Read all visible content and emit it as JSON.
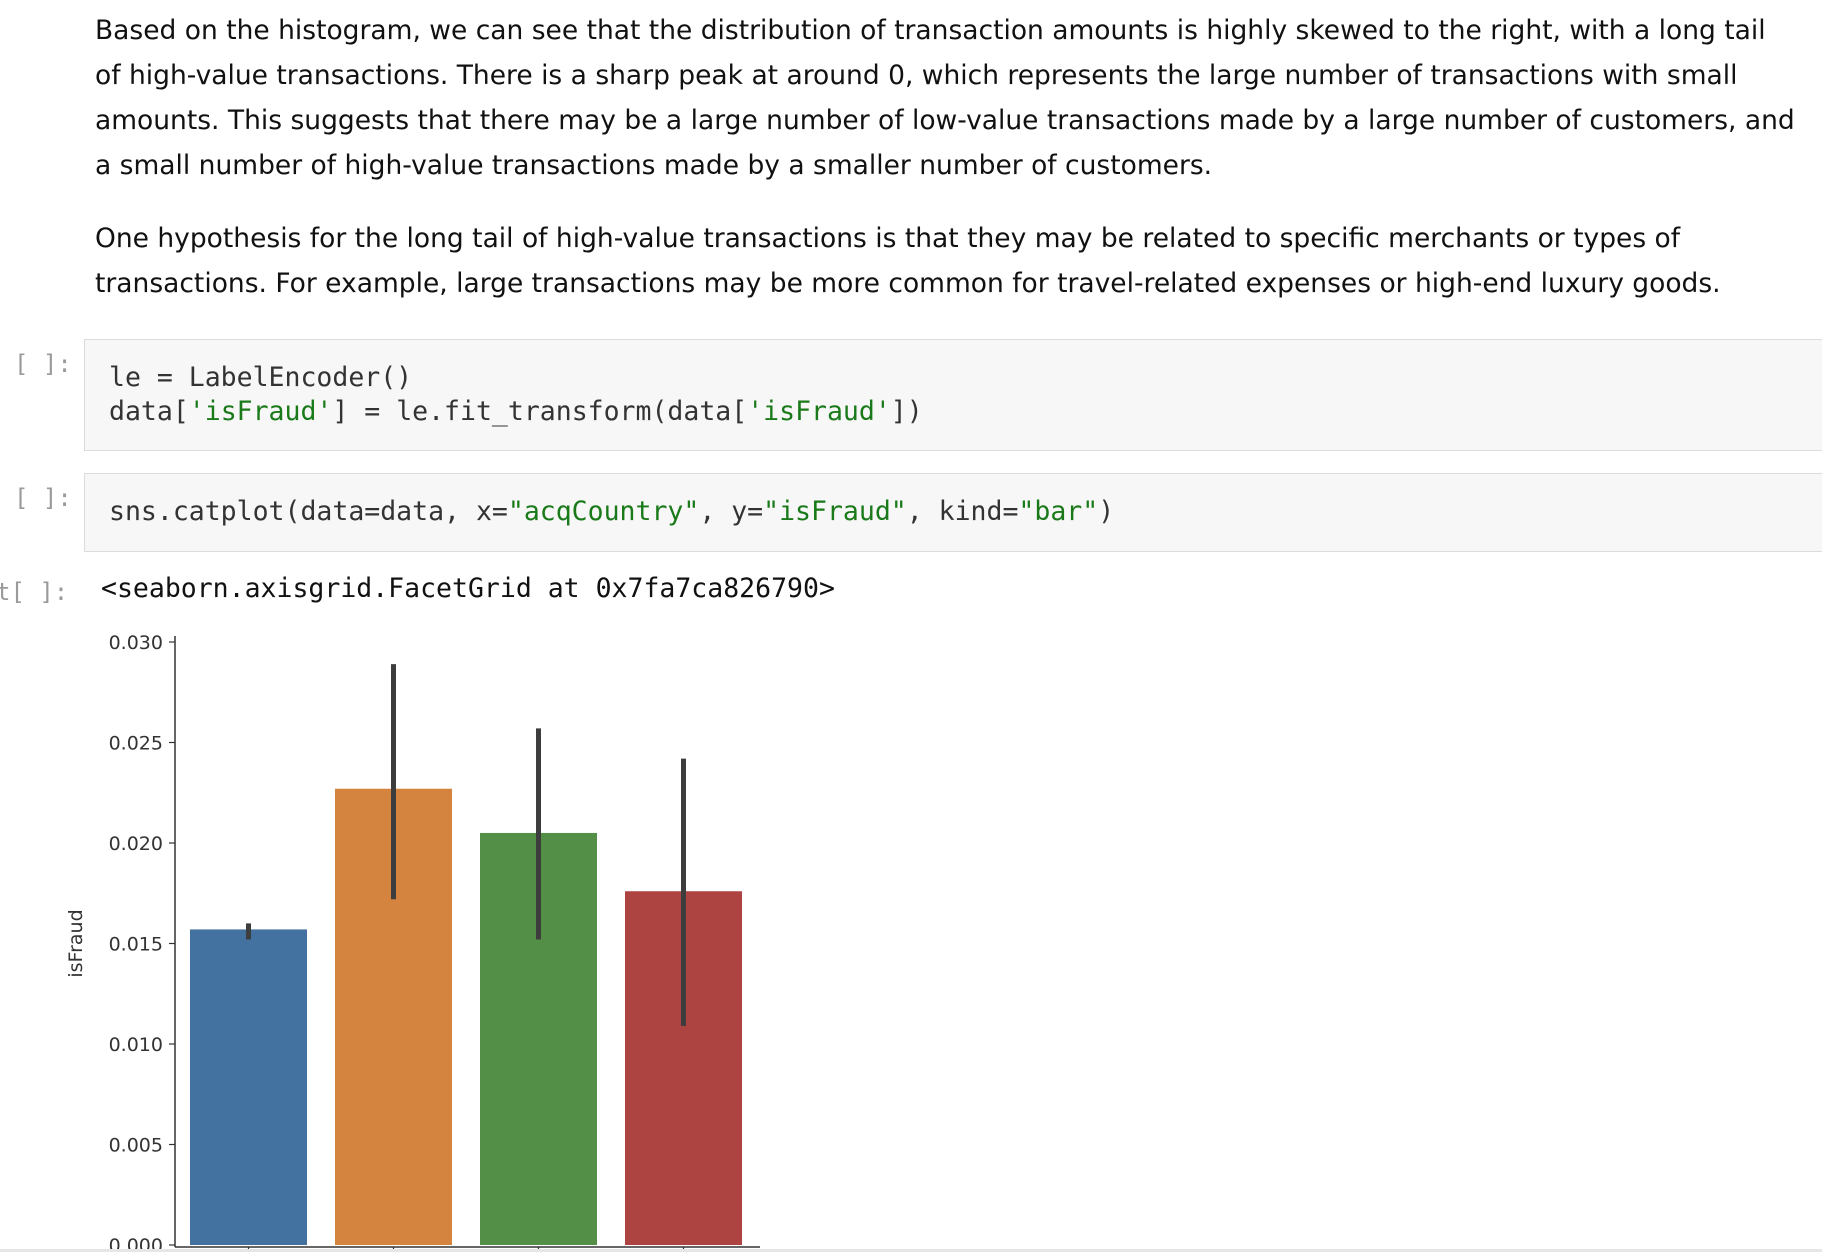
{
  "markdown": {
    "paragraph_1": "Based on the histogram, we can see that the distribution of transaction amounts is highly skewed to the right, with a long tail of high-value transactions. There is a sharp peak at around 0, which represents the large number of transactions with small amounts. This suggests that there may be a large number of low-value transactions made by a large number of customers, and a small number of high-value transactions made by a smaller number of customers.",
    "paragraph_2": "One hypothesis for the long tail of high-value transactions is that they may be related to specific merchants or types of transactions. For example, large transactions may be more common for travel-related expenses or high-end luxury goods."
  },
  "cells": {
    "cell_1": {
      "prompt": "[ ]:",
      "line_1": "le = LabelEncoder()",
      "line_2_a": "data[",
      "line_2_b": "'isFraud'",
      "line_2_c": "] = le.fit_transform(data[",
      "line_2_d": "'isFraud'",
      "line_2_e": "])"
    },
    "cell_2": {
      "prompt": "[ ]:",
      "part_a": "sns.catplot(data=data, x=",
      "part_b": "\"acqCountry\"",
      "part_c": ", y=",
      "part_d": "\"isFraud\"",
      "part_e": ", kind=",
      "part_f": "\"bar\"",
      "part_g": ")"
    },
    "output": {
      "prompt": "t[ ]:",
      "text": "<seaborn.axisgrid.FacetGrid at 0x7fa7ca826790>"
    }
  },
  "chart_data": {
    "type": "bar",
    "ylabel": "isFraud",
    "ylim": [
      0,
      0.03
    ],
    "yticks": [
      "0.000",
      "0.005",
      "0.010",
      "0.015",
      "0.020",
      "0.025",
      "0.030"
    ],
    "bars": [
      {
        "value": 0.0157,
        "ci_low": 0.0152,
        "ci_high": 0.016,
        "color": "#4472a0"
      },
      {
        "value": 0.0227,
        "ci_low": 0.0172,
        "ci_high": 0.0289,
        "color": "#d4843e"
      },
      {
        "value": 0.0205,
        "ci_low": 0.0152,
        "ci_high": 0.0257,
        "color": "#548f47"
      },
      {
        "value": 0.0176,
        "ci_low": 0.0109,
        "ci_high": 0.0242,
        "color": "#ad4441"
      }
    ]
  }
}
